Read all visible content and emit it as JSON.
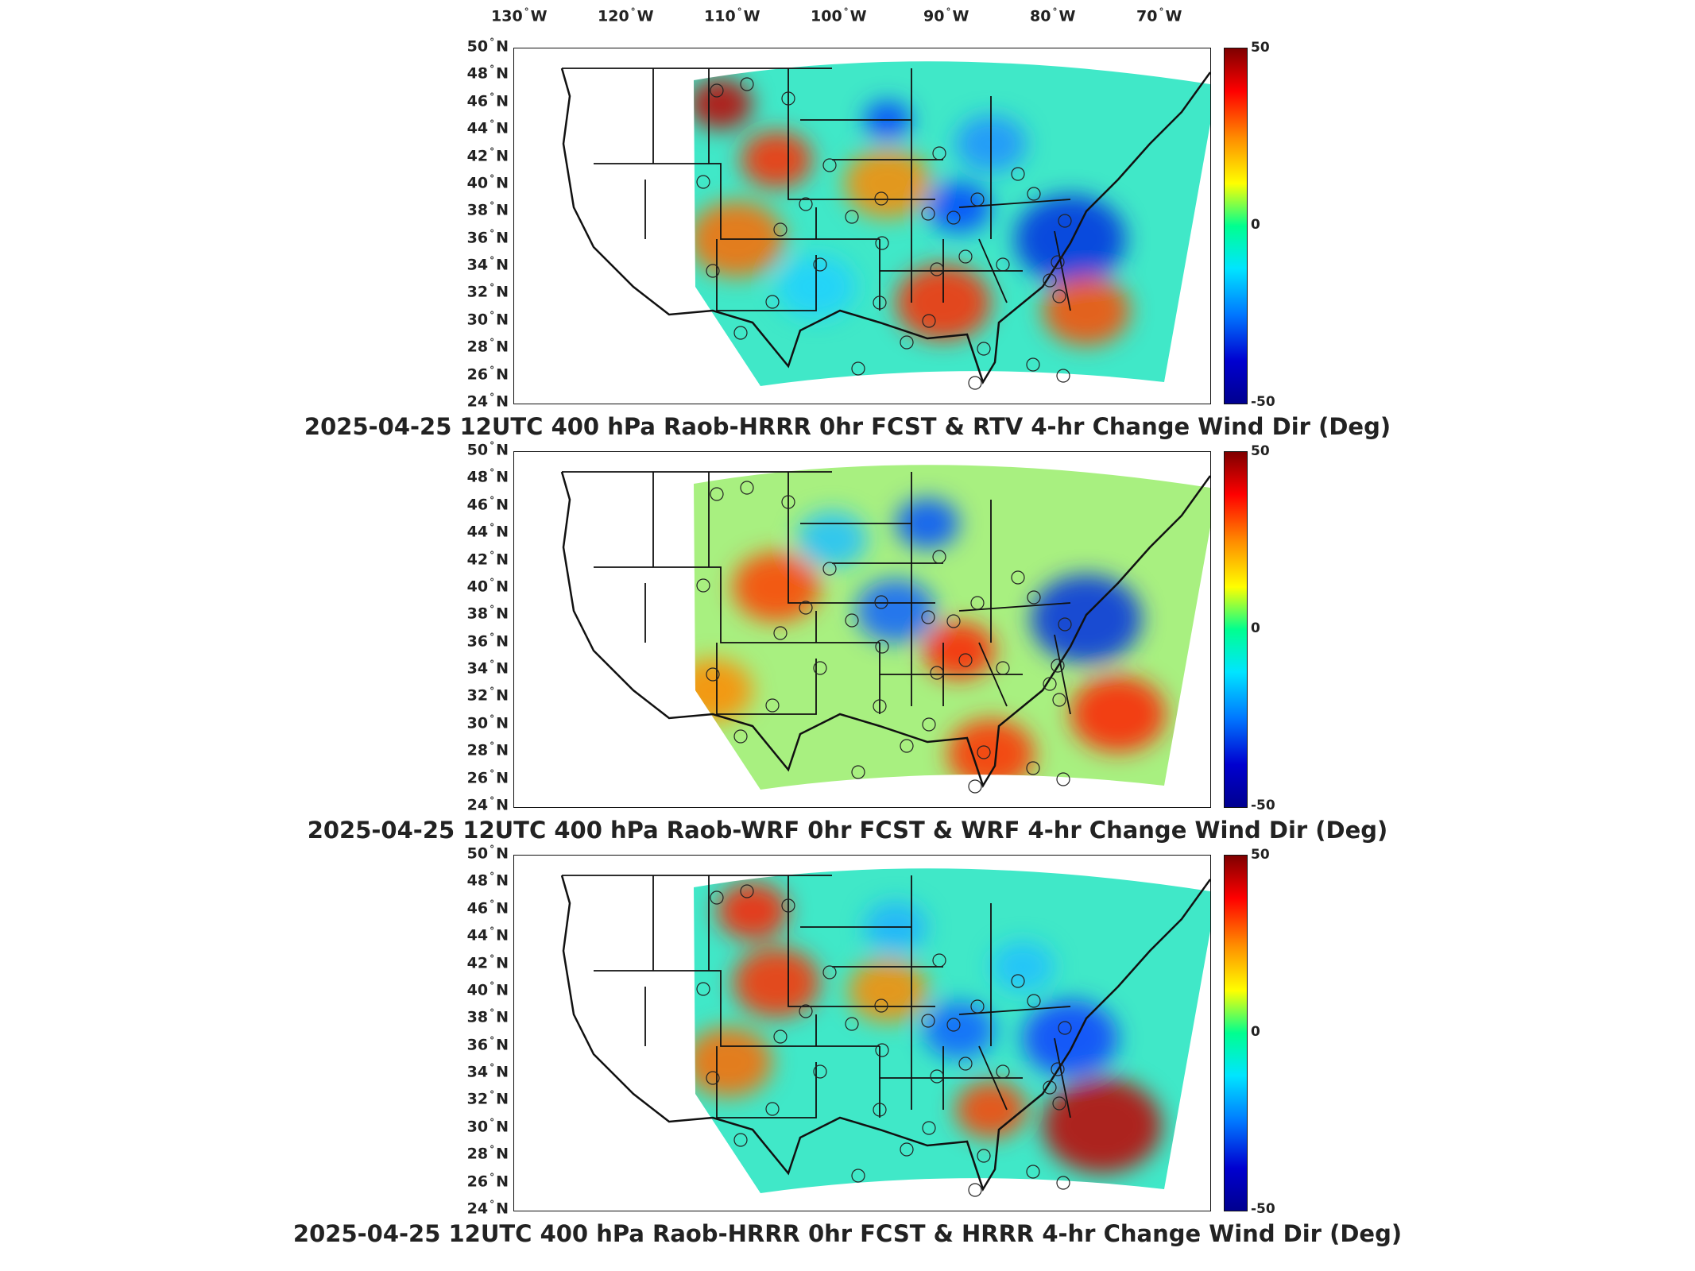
{
  "lon_labels": [
    "130",
    "120",
    "110",
    "100",
    "90",
    "80",
    "70"
  ],
  "lon_suffix": "W",
  "lat_labels": [
    "50",
    "48",
    "46",
    "44",
    "42",
    "40",
    "38",
    "36",
    "34",
    "32",
    "30",
    "28",
    "26",
    "24"
  ],
  "lat_suffix": "N",
  "colorbar": {
    "max": "50",
    "mid": "0",
    "min": "-50",
    "colors": [
      "#7f0000",
      "#ff0000",
      "#ff8a00",
      "#ffff00",
      "#00ff90",
      "#00e5ff",
      "#0077ff",
      "#0000d0",
      "#00008f"
    ]
  },
  "panels": [
    {
      "title": "2025-04-25 12UTC 400 hPa Raob-HRRR 0hr FCST & RTV 4-hr Change Wind Dir (Deg)"
    },
    {
      "title": "2025-04-25 12UTC 400 hPa Raob-WRF 0hr FCST & WRF 4-hr Change Wind Dir (Deg)"
    },
    {
      "title": "2025-04-25 12UTC 400 hPa Raob-HRRR 0hr FCST & HRRR 4-hr Change Wind Dir (Deg)"
    }
  ]
}
